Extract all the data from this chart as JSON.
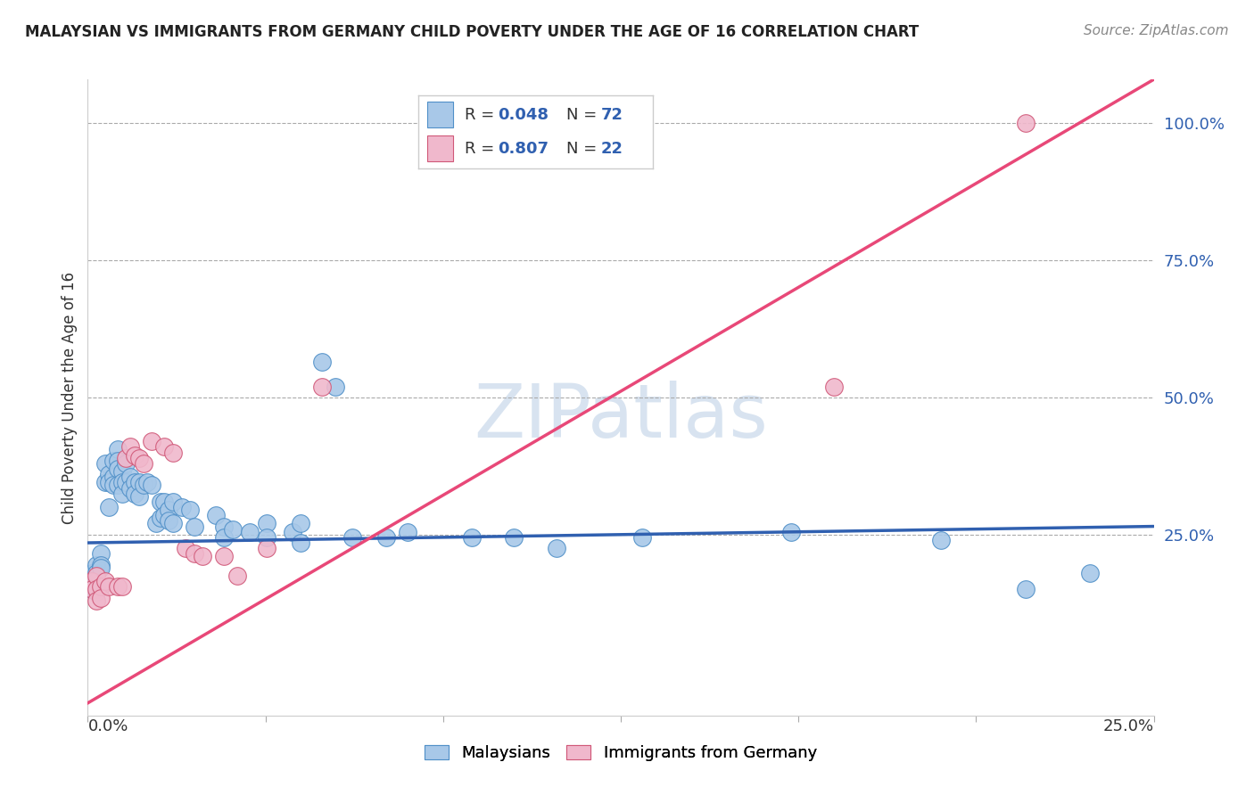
{
  "title": "MALAYSIAN VS IMMIGRANTS FROM GERMANY CHILD POVERTY UNDER THE AGE OF 16 CORRELATION CHART",
  "source": "Source: ZipAtlas.com",
  "ylabel": "Child Poverty Under the Age of 16",
  "watermark": "ZIPatlas",
  "watermark_color": "#c8d8ea",
  "blue_color": "#a8c8e8",
  "blue_edge_color": "#5090c8",
  "pink_color": "#f0b8cc",
  "pink_edge_color": "#d05878",
  "blue_line_color": "#3060b0",
  "pink_line_color": "#e84878",
  "xmin": 0.0,
  "xmax": 0.25,
  "ymin": -0.08,
  "ymax": 1.08,
  "ytick_values": [
    0.25,
    0.5,
    0.75,
    1.0
  ],
  "ytick_labels": [
    "25.0%",
    "50.0%",
    "75.0%",
    "100.0%"
  ],
  "blue_line_x": [
    0.0,
    0.25
  ],
  "blue_line_y": [
    0.235,
    0.265
  ],
  "pink_line_x": [
    -0.005,
    0.25
  ],
  "pink_line_y": [
    -0.08,
    1.08
  ],
  "blue_scatter": [
    [
      0.001,
      0.18
    ],
    [
      0.001,
      0.16
    ],
    [
      0.001,
      0.15
    ],
    [
      0.002,
      0.195
    ],
    [
      0.002,
      0.18
    ],
    [
      0.002,
      0.165
    ],
    [
      0.002,
      0.145
    ],
    [
      0.003,
      0.215
    ],
    [
      0.003,
      0.195
    ],
    [
      0.003,
      0.19
    ],
    [
      0.004,
      0.38
    ],
    [
      0.004,
      0.345
    ],
    [
      0.005,
      0.36
    ],
    [
      0.005,
      0.345
    ],
    [
      0.005,
      0.3
    ],
    [
      0.006,
      0.385
    ],
    [
      0.006,
      0.355
    ],
    [
      0.006,
      0.34
    ],
    [
      0.007,
      0.405
    ],
    [
      0.007,
      0.385
    ],
    [
      0.007,
      0.37
    ],
    [
      0.007,
      0.34
    ],
    [
      0.008,
      0.365
    ],
    [
      0.008,
      0.345
    ],
    [
      0.008,
      0.325
    ],
    [
      0.009,
      0.38
    ],
    [
      0.009,
      0.345
    ],
    [
      0.01,
      0.355
    ],
    [
      0.01,
      0.335
    ],
    [
      0.011,
      0.345
    ],
    [
      0.011,
      0.325
    ],
    [
      0.012,
      0.345
    ],
    [
      0.012,
      0.32
    ],
    [
      0.013,
      0.34
    ],
    [
      0.014,
      0.345
    ],
    [
      0.015,
      0.34
    ],
    [
      0.016,
      0.27
    ],
    [
      0.017,
      0.31
    ],
    [
      0.017,
      0.28
    ],
    [
      0.018,
      0.31
    ],
    [
      0.018,
      0.285
    ],
    [
      0.019,
      0.295
    ],
    [
      0.019,
      0.275
    ],
    [
      0.02,
      0.31
    ],
    [
      0.02,
      0.27
    ],
    [
      0.022,
      0.3
    ],
    [
      0.024,
      0.295
    ],
    [
      0.025,
      0.265
    ],
    [
      0.03,
      0.285
    ],
    [
      0.032,
      0.265
    ],
    [
      0.032,
      0.245
    ],
    [
      0.034,
      0.26
    ],
    [
      0.038,
      0.255
    ],
    [
      0.042,
      0.27
    ],
    [
      0.042,
      0.245
    ],
    [
      0.048,
      0.255
    ],
    [
      0.05,
      0.27
    ],
    [
      0.05,
      0.235
    ],
    [
      0.055,
      0.565
    ],
    [
      0.058,
      0.52
    ],
    [
      0.062,
      0.245
    ],
    [
      0.07,
      0.245
    ],
    [
      0.075,
      0.255
    ],
    [
      0.09,
      0.245
    ],
    [
      0.1,
      0.245
    ],
    [
      0.11,
      0.225
    ],
    [
      0.13,
      0.245
    ],
    [
      0.165,
      0.255
    ],
    [
      0.2,
      0.24
    ],
    [
      0.22,
      0.15
    ],
    [
      0.235,
      0.18
    ]
  ],
  "pink_scatter": [
    [
      0.001,
      0.165
    ],
    [
      0.001,
      0.15
    ],
    [
      0.002,
      0.175
    ],
    [
      0.002,
      0.15
    ],
    [
      0.002,
      0.13
    ],
    [
      0.003,
      0.155
    ],
    [
      0.003,
      0.135
    ],
    [
      0.004,
      0.165
    ],
    [
      0.005,
      0.155
    ],
    [
      0.007,
      0.155
    ],
    [
      0.008,
      0.155
    ],
    [
      0.009,
      0.39
    ],
    [
      0.01,
      0.41
    ],
    [
      0.011,
      0.395
    ],
    [
      0.012,
      0.39
    ],
    [
      0.013,
      0.38
    ],
    [
      0.015,
      0.42
    ],
    [
      0.018,
      0.41
    ],
    [
      0.02,
      0.4
    ],
    [
      0.023,
      0.225
    ],
    [
      0.025,
      0.215
    ],
    [
      0.027,
      0.21
    ],
    [
      0.032,
      0.21
    ],
    [
      0.035,
      0.175
    ],
    [
      0.042,
      0.225
    ],
    [
      0.055,
      0.52
    ],
    [
      0.175,
      0.52
    ],
    [
      0.22,
      1.0
    ]
  ]
}
